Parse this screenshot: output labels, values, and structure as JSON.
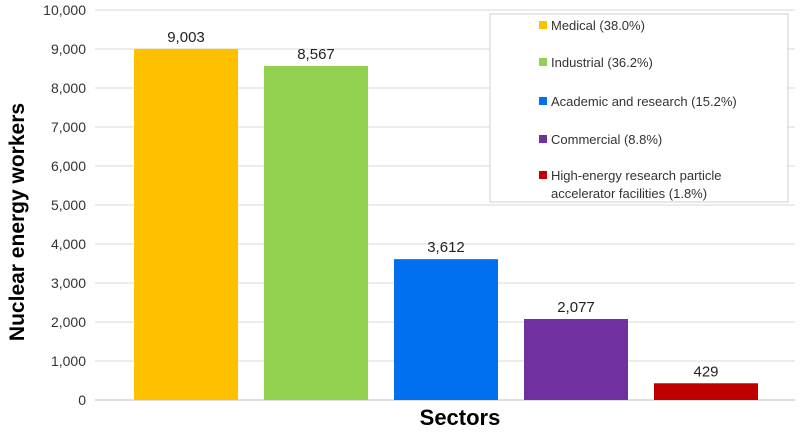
{
  "chart_data": {
    "type": "bar",
    "categories": [
      "Medical (38.0%)",
      "Industrial (36.2%)",
      "Academic and research (15.2%)",
      "Commercial (8.8%)",
      "High-energy research particle accelerator facilities (1.8%)"
    ],
    "values": [
      9003,
      8567,
      3612,
      2077,
      429
    ],
    "value_labels": [
      "9,003",
      "8,567",
      "3,612",
      "2,077",
      "429"
    ],
    "colors": [
      "#FFC000",
      "#92D050",
      "#0070F0",
      "#7030A0",
      "#C00000"
    ],
    "xlabel": "Sectors",
    "ylabel": "Nuclear energy workers",
    "ylim": [
      0,
      10000
    ],
    "yticks": [
      0,
      1000,
      2000,
      3000,
      4000,
      5000,
      6000,
      7000,
      8000,
      9000,
      10000
    ],
    "ytick_labels": [
      "0",
      "1,000",
      "2,000",
      "3,000",
      "4,000",
      "5,000",
      "6,000",
      "7,000",
      "8,000",
      "9,000",
      "10,000"
    ],
    "grid": "horizontal",
    "legend": {
      "placement": "top-right",
      "entries": [
        {
          "label": [
            "Medical (38.0%)"
          ],
          "color": "#FFC000"
        },
        {
          "label": [
            "Industrial (36.2%)"
          ],
          "color": "#92D050"
        },
        {
          "label": [
            "Academic and research (15.2%)"
          ],
          "color": "#0070F0"
        },
        {
          "label": [
            "Commercial (8.8%)"
          ],
          "color": "#7030A0"
        },
        {
          "label": [
            "High-energy research particle",
            "accelerator facilities (1.8%)"
          ],
          "color": "#C00000"
        }
      ]
    }
  }
}
